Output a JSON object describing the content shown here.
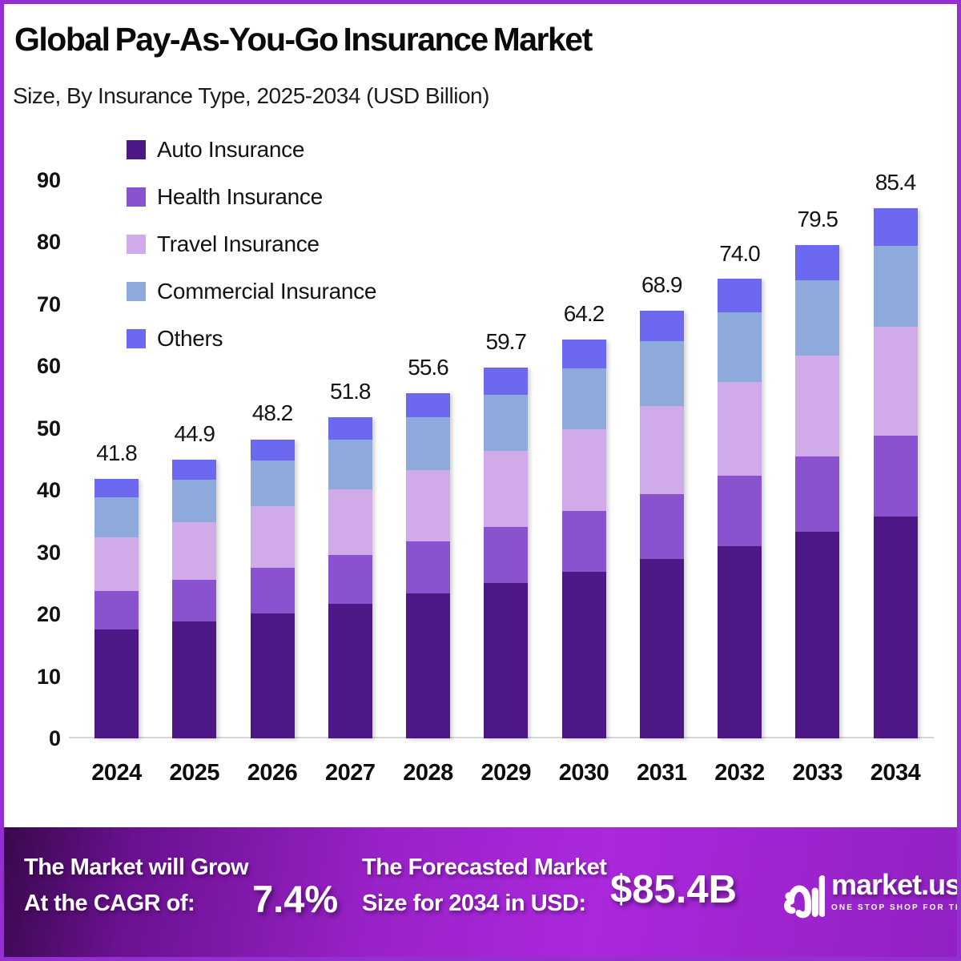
{
  "header": {
    "title": "Global Pay-As-You-Go Insurance Market",
    "subtitle": "Size, By Insurance Type, 2025-2034 (USD Billion)"
  },
  "chart_data": {
    "type": "bar",
    "stacked": true,
    "title": "Global Pay-As-You-Go Insurance Market Size, By Insurance Type, 2025-2034 (USD Billion)",
    "categories": [
      "2024",
      "2025",
      "2026",
      "2027",
      "2028",
      "2029",
      "2030",
      "2031",
      "2032",
      "2033",
      "2034"
    ],
    "series": [
      {
        "name": "Auto Insurance",
        "color": "#4d1886",
        "values": [
          17.5,
          18.8,
          20.2,
          21.7,
          23.3,
          25.0,
          26.9,
          28.9,
          31.0,
          33.3,
          35.8
        ]
      },
      {
        "name": "Health Insurance",
        "color": "#8a52ce",
        "values": [
          6.3,
          6.8,
          7.3,
          7.9,
          8.5,
          9.1,
          9.8,
          10.5,
          11.3,
          12.1,
          13.0
        ]
      },
      {
        "name": "Travel Insurance",
        "color": "#d1abe9",
        "values": [
          8.6,
          9.2,
          9.9,
          10.6,
          11.4,
          12.2,
          13.1,
          14.1,
          15.1,
          16.3,
          17.5
        ]
      },
      {
        "name": "Commercial Insurance",
        "color": "#8ea9db",
        "values": [
          6.4,
          6.9,
          7.4,
          7.9,
          8.5,
          9.1,
          9.8,
          10.5,
          11.3,
          12.1,
          13.0
        ]
      },
      {
        "name": "Others",
        "color": "#6c68f0",
        "values": [
          3.0,
          3.2,
          3.4,
          3.7,
          3.9,
          4.3,
          4.6,
          4.9,
          5.3,
          5.7,
          6.1
        ]
      }
    ],
    "totals": [
      41.8,
      44.9,
      48.2,
      51.8,
      55.6,
      59.7,
      64.2,
      68.9,
      74.0,
      79.5,
      85.4
    ],
    "xlabel": "",
    "ylabel": "",
    "ylim": [
      0,
      90
    ],
    "yticks": [
      0,
      10,
      20,
      30,
      40,
      50,
      60,
      70,
      80,
      90
    ],
    "grid": false,
    "legend_position": "inside-top-left"
  },
  "footer": {
    "cagr_label_line1": "The Market will Grow",
    "cagr_label_line2": "At the CAGR of:",
    "cagr_value": "7.4%",
    "forecast_label_line1": "The Forecasted Market",
    "forecast_label_line2": "Size for 2034 in USD:",
    "forecast_value": "$85.4B",
    "brand_name": "market.us",
    "brand_tagline": "ONE STOP SHOP FOR THE REPORTS"
  },
  "colors": {
    "page_border": "#9430d2",
    "baseline": "#d6d6d6",
    "footer_gradient_start": "#38084a",
    "footer_gradient_mid": "#ab28dc",
    "footer_gradient_end": "#9021c2"
  }
}
